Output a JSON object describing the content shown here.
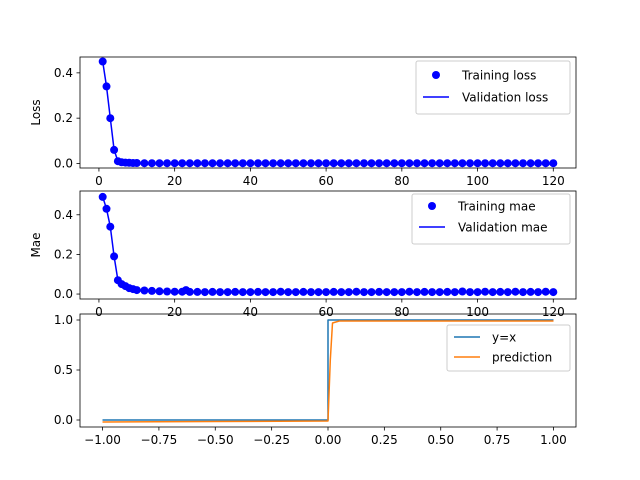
{
  "chart_data": [
    {
      "type": "line",
      "ylabel": "Loss",
      "xlim": [
        -5,
        126
      ],
      "ylim": [
        -0.02,
        0.47
      ],
      "xticks": [
        0,
        20,
        40,
        60,
        80,
        100,
        120
      ],
      "xtick_labels": [
        "0",
        "20",
        "40",
        "60",
        "80",
        "100",
        "120"
      ],
      "yticks": [
        0.0,
        0.2,
        0.4
      ],
      "ytick_labels": [
        "0.0",
        "0.2",
        "0.4"
      ],
      "legend_position": "top-right",
      "series": [
        {
          "name": "Training loss",
          "style": "markers",
          "color": "#0000ff",
          "x": [
            1,
            2,
            3,
            4,
            5,
            6,
            7,
            8,
            9,
            10,
            12,
            14,
            16,
            18,
            20,
            22,
            24,
            26,
            28,
            30,
            32,
            34,
            36,
            38,
            40,
            42,
            44,
            46,
            48,
            50,
            52,
            54,
            56,
            58,
            60,
            62,
            64,
            66,
            68,
            70,
            72,
            74,
            76,
            78,
            80,
            82,
            84,
            86,
            88,
            90,
            92,
            94,
            96,
            98,
            100,
            102,
            104,
            106,
            108,
            110,
            112,
            114,
            116,
            118,
            120
          ],
          "y": [
            0.45,
            0.34,
            0.2,
            0.06,
            0.01,
            0.005,
            0.004,
            0.003,
            0.002,
            0.002,
            0.001,
            0.001,
            0.001,
            0.001,
            0.001,
            0.001,
            0.001,
            0.001,
            0.001,
            0.001,
            0.001,
            0.001,
            0.001,
            0.001,
            0.001,
            0.001,
            0.001,
            0.001,
            0.001,
            0.001,
            0.001,
            0.001,
            0.001,
            0.001,
            0.001,
            0.001,
            0.001,
            0.001,
            0.001,
            0.001,
            0.001,
            0.001,
            0.001,
            0.001,
            0.001,
            0.001,
            0.001,
            0.001,
            0.001,
            0.001,
            0.001,
            0.001,
            0.001,
            0.001,
            0.001,
            0.001,
            0.001,
            0.001,
            0.001,
            0.001,
            0.001,
            0.001,
            0.001,
            0.001,
            0.001
          ]
        },
        {
          "name": "Validation loss",
          "style": "line",
          "color": "#0000ff",
          "x": [
            1,
            2,
            3,
            4,
            5,
            6,
            7,
            8,
            10,
            20,
            40,
            60,
            80,
            100,
            120
          ],
          "y": [
            0.45,
            0.34,
            0.2,
            0.06,
            0.01,
            0.005,
            0.004,
            0.003,
            0.002,
            0.001,
            0.001,
            0.001,
            0.001,
            0.001,
            0.001
          ]
        }
      ]
    },
    {
      "type": "line",
      "ylabel": "Mae",
      "xlim": [
        -5,
        126
      ],
      "ylim": [
        -0.025,
        0.52
      ],
      "xticks": [
        0,
        20,
        40,
        60,
        80,
        100,
        120
      ],
      "xtick_labels": [
        "0",
        "20",
        "40",
        "60",
        "80",
        "100",
        "120"
      ],
      "yticks": [
        0.0,
        0.2,
        0.4
      ],
      "ytick_labels": [
        "0.0",
        "0.2",
        "0.4"
      ],
      "legend_position": "top-right",
      "series": [
        {
          "name": "Training mae",
          "style": "markers",
          "color": "#0000ff",
          "x": [
            1,
            2,
            3,
            4,
            5,
            6,
            7,
            8,
            9,
            10,
            12,
            14,
            16,
            18,
            20,
            22,
            23,
            24,
            26,
            28,
            30,
            32,
            34,
            36,
            38,
            40,
            42,
            44,
            46,
            48,
            50,
            52,
            54,
            56,
            58,
            60,
            62,
            64,
            66,
            68,
            70,
            72,
            74,
            76,
            78,
            80,
            82,
            84,
            86,
            88,
            90,
            92,
            94,
            96,
            98,
            100,
            102,
            104,
            106,
            108,
            110,
            112,
            114,
            116,
            118,
            120
          ],
          "y": [
            0.49,
            0.43,
            0.34,
            0.19,
            0.07,
            0.05,
            0.04,
            0.03,
            0.025,
            0.02,
            0.018,
            0.016,
            0.014,
            0.013,
            0.012,
            0.012,
            0.02,
            0.011,
            0.011,
            0.01,
            0.011,
            0.01,
            0.01,
            0.011,
            0.01,
            0.01,
            0.011,
            0.01,
            0.01,
            0.012,
            0.01,
            0.01,
            0.011,
            0.01,
            0.01,
            0.01,
            0.011,
            0.01,
            0.01,
            0.012,
            0.01,
            0.01,
            0.011,
            0.01,
            0.01,
            0.01,
            0.012,
            0.01,
            0.011,
            0.01,
            0.01,
            0.011,
            0.01,
            0.013,
            0.01,
            0.01,
            0.012,
            0.01,
            0.011,
            0.01,
            0.012,
            0.01,
            0.011,
            0.01,
            0.012,
            0.01
          ]
        },
        {
          "name": "Validation mae",
          "style": "line",
          "color": "#0000ff",
          "x": [
            1,
            2,
            3,
            4,
            5,
            6,
            7,
            8,
            10,
            12,
            16,
            20,
            40,
            60,
            80,
            100,
            120
          ],
          "y": [
            0.49,
            0.43,
            0.34,
            0.19,
            0.07,
            0.05,
            0.04,
            0.03,
            0.02,
            0.016,
            0.013,
            0.012,
            0.01,
            0.01,
            0.01,
            0.01,
            0.01
          ]
        }
      ]
    },
    {
      "type": "line",
      "xlim": [
        -1.1,
        1.1
      ],
      "ylim": [
        -0.07,
        1.06
      ],
      "xticks": [
        -1.0,
        -0.75,
        -0.5,
        -0.25,
        0.0,
        0.25,
        0.5,
        0.75,
        1.0
      ],
      "xtick_labels": [
        "−1.00",
        "−0.75",
        "−0.50",
        "−0.25",
        "0.00",
        "0.25",
        "0.50",
        "0.75",
        "1.00"
      ],
      "yticks": [
        0.0,
        0.5,
        1.0
      ],
      "ytick_labels": [
        "0.0",
        "0.5",
        "1.0"
      ],
      "legend_position": "top-right",
      "series": [
        {
          "name": "y=x",
          "style": "line",
          "color": "#1f77b4",
          "x": [
            -1.0,
            0.0,
            0.0,
            1.0
          ],
          "y": [
            0.0,
            0.0,
            1.0,
            1.0
          ]
        },
        {
          "name": "prediction",
          "style": "line",
          "color": "#ff7f0e",
          "x": [
            -1.0,
            -0.5,
            0.0,
            0.01,
            0.02,
            0.05,
            0.5,
            1.0
          ],
          "y": [
            -0.02,
            -0.015,
            -0.01,
            0.6,
            0.97,
            0.99,
            0.99,
            0.99
          ]
        }
      ]
    }
  ]
}
